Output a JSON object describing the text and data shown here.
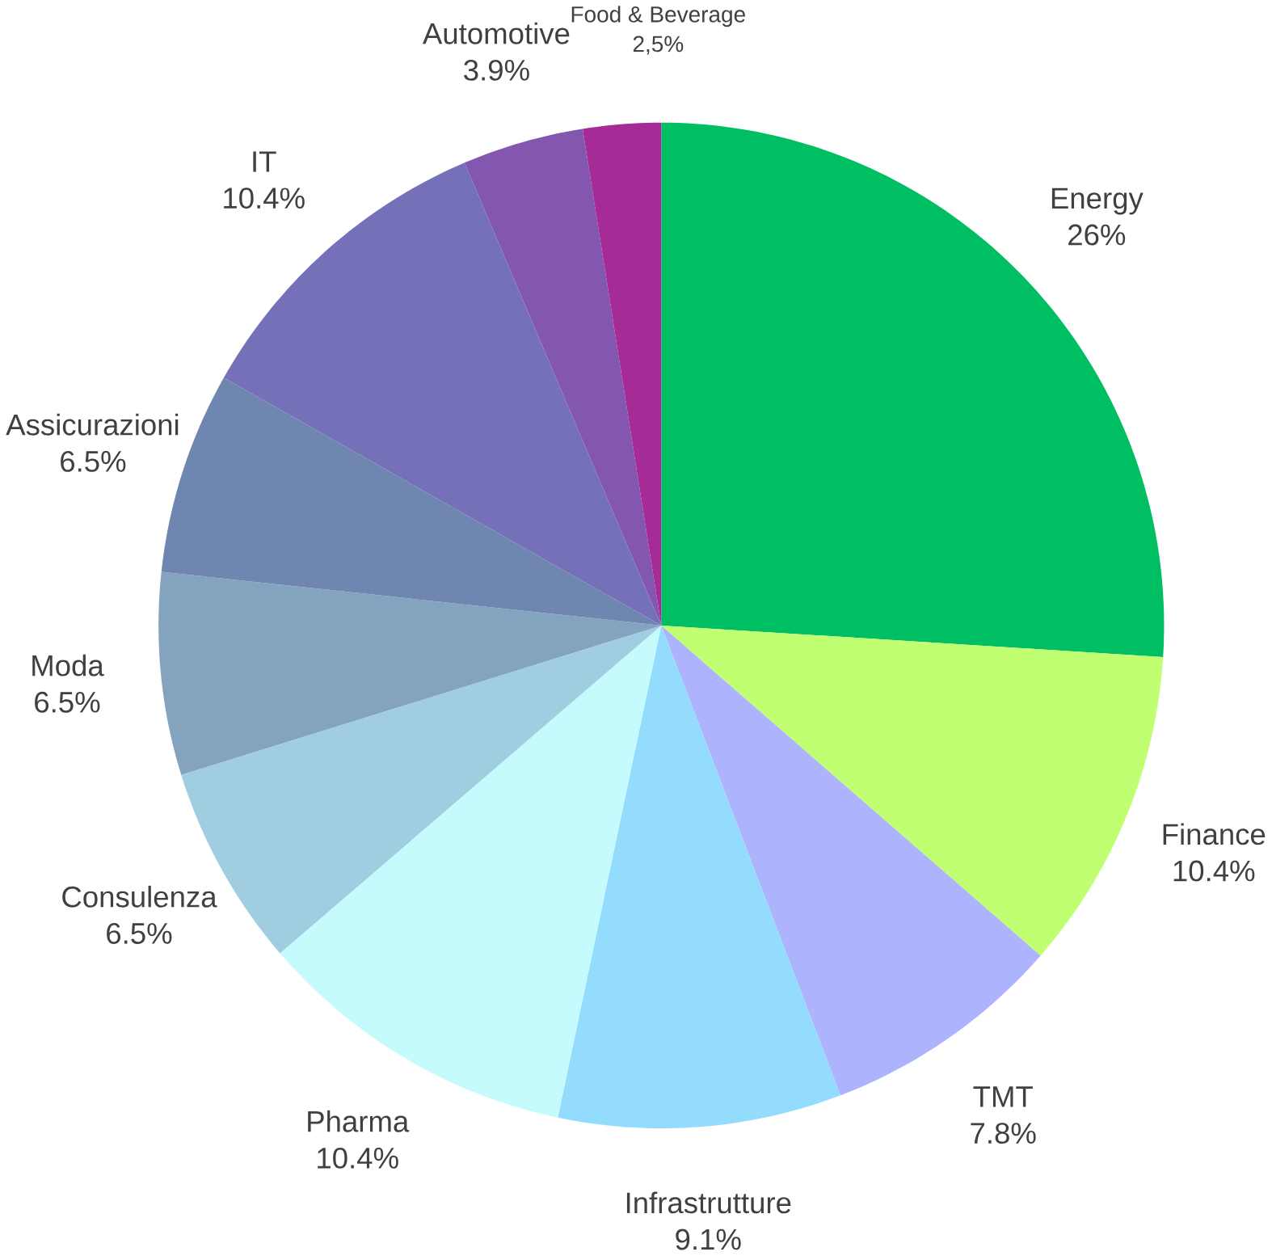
{
  "chart_data": {
    "type": "pie",
    "categories": [
      "Energy",
      "Finance",
      "TMT",
      "Infrastrutture",
      "Pharma",
      "Consulenza",
      "Moda",
      "Assicurazioni",
      "IT",
      "Automotive",
      "Food & Beverage"
    ],
    "values": [
      26,
      10.4,
      7.8,
      9.1,
      10.4,
      6.5,
      6.5,
      6.5,
      10.4,
      3.9,
      2.5
    ],
    "value_labels": [
      "26%",
      "10.4%",
      "7.8%",
      "9.1%",
      "10.4%",
      "6.5%",
      "6.5%",
      "6.5%",
      "10.4%",
      "3.9%",
      "2,5%"
    ],
    "colors": [
      "#00bf63",
      "#c1ff72",
      "#aeb3fe",
      "#94dcfd",
      "#c6fbfd",
      "#a1cde0",
      "#84a3bf",
      "#6e86b0",
      "#7571b8",
      "#8356b0",
      "#a52b96"
    ]
  }
}
